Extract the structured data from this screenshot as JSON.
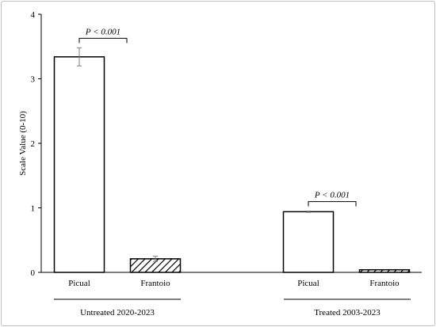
{
  "chart_data": {
    "type": "bar",
    "ylabel": "Scale Value (0-10)",
    "ylim": [
      0,
      4
    ],
    "yticks": [
      0,
      1,
      2,
      3,
      4
    ],
    "grid": false,
    "groups": [
      {
        "name": "Untreated 2020-2023",
        "bars": [
          {
            "category": "Picual",
            "value": 3.34,
            "error": 0.14,
            "fill": "plain"
          },
          {
            "category": "Frantoio",
            "value": 0.21,
            "error": 0.04,
            "fill": "hatched"
          }
        ],
        "significance": "P < 0.001"
      },
      {
        "name": "Treated 2003-2023",
        "bars": [
          {
            "category": "Picual",
            "value": 0.94,
            "error": 0.01,
            "fill": "plain"
          },
          {
            "category": "Frantoio",
            "value": 0.04,
            "error": 0.0,
            "fill": "hatched"
          }
        ],
        "significance": "P < 0.001"
      }
    ]
  },
  "colors": {
    "bar_stroke": "#000000",
    "bar_fill": "#ffffff",
    "error_bar": "#808080"
  }
}
